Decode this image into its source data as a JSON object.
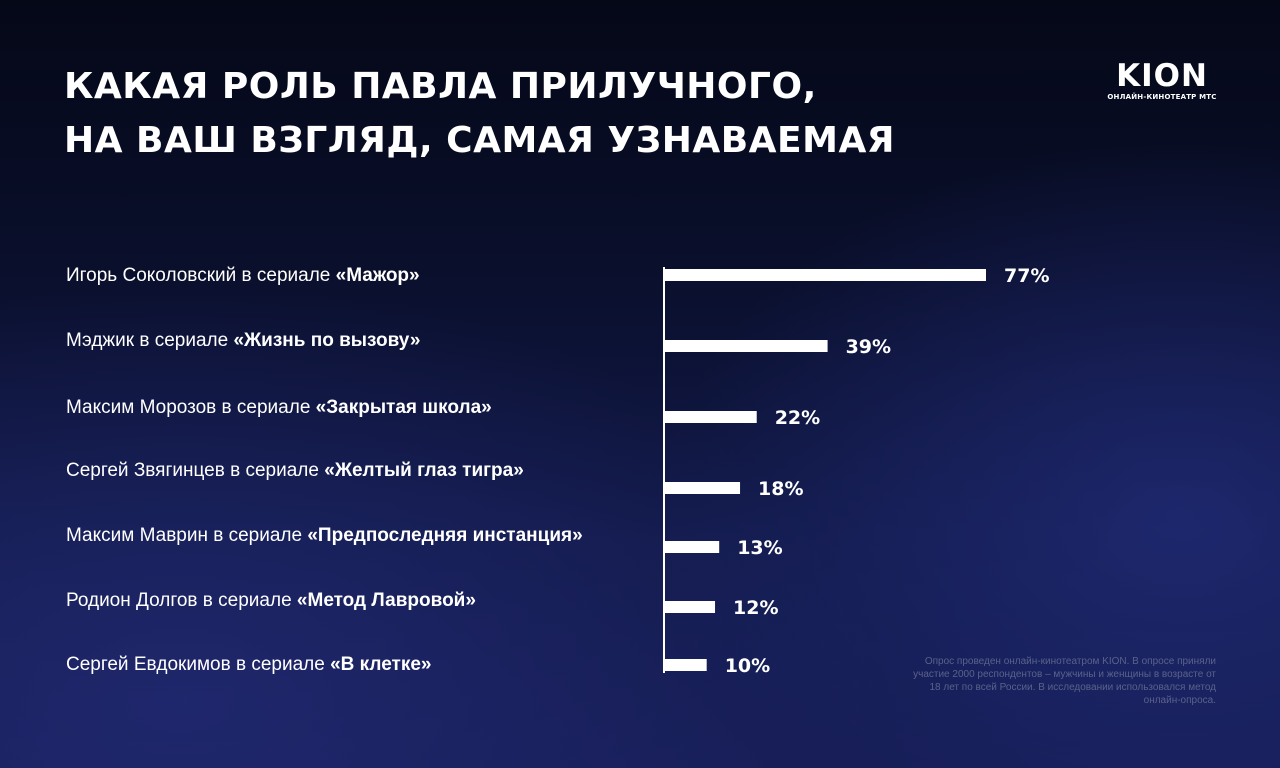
{
  "title_lines": [
    "КАКАЯ РОЛЬ ПАВЛА ПРИЛУЧНОГО,",
    "НА ВАШ ВЗГЛЯД, САМАЯ УЗНАВАЕМАЯ"
  ],
  "logo": {
    "mark": "KION",
    "subtitle": "ОНЛАЙН-КИНОТЕАТР МТС"
  },
  "rows": [
    {
      "prefix": "Игорь Соколовский в сериале ",
      "show": "«Мажор»"
    },
    {
      "prefix": "Мэджик в сериале ",
      "show": "«Жизнь по вызову»"
    },
    {
      "prefix": "Максим Морозов в сериале ",
      "show": "«Закрытая школа»"
    },
    {
      "prefix": "Сергей Звягинцев в сериале ",
      "show": "«Желтый глаз тигра»"
    },
    {
      "prefix": "Максим Маврин в сериале ",
      "show": "«Предпоследняя инстанция»"
    },
    {
      "prefix": "Родион Долгов в сериале ",
      "show": "«Метод Лавровой»"
    },
    {
      "prefix": "Сергей Евдокимов в сериале ",
      "show": "«В клетке»"
    }
  ],
  "chart_data": {
    "type": "bar",
    "orientation": "horizontal",
    "categories": [
      "Игорь Соколовский в сериале «Мажор»",
      "Мэджик в сериале «Жизнь по вызову»",
      "Максим Морозов в сериале «Закрытая школа»",
      "Сергей Звягинцев в сериале «Желтый глаз тигра»",
      "Максим Маврин в сериале «Предпоследняя инстанция»",
      "Родион Долгов в сериале «Метод Лавровой»",
      "Сергей Евдокимов в сериале «В клетке»"
    ],
    "values": [
      77,
      39,
      22,
      18,
      13,
      12,
      10
    ],
    "value_labels": [
      "77%",
      "39%",
      "22%",
      "18%",
      "13%",
      "12%",
      "10%"
    ],
    "unit": "%",
    "xlim": [
      0,
      77
    ],
    "grid": false,
    "legend": "none",
    "bar_color": "#ffffff"
  },
  "note": "Опрос проведен онлайн-кинотеатром KION. В опросе приняли участие 2000 респондентов – мужчины и женщины в возрасте от 18 лет по всей России. В исследовании использовался метод онлайн-опроса.",
  "colors": {
    "text": "#ffffff",
    "note": "#5a6289"
  }
}
